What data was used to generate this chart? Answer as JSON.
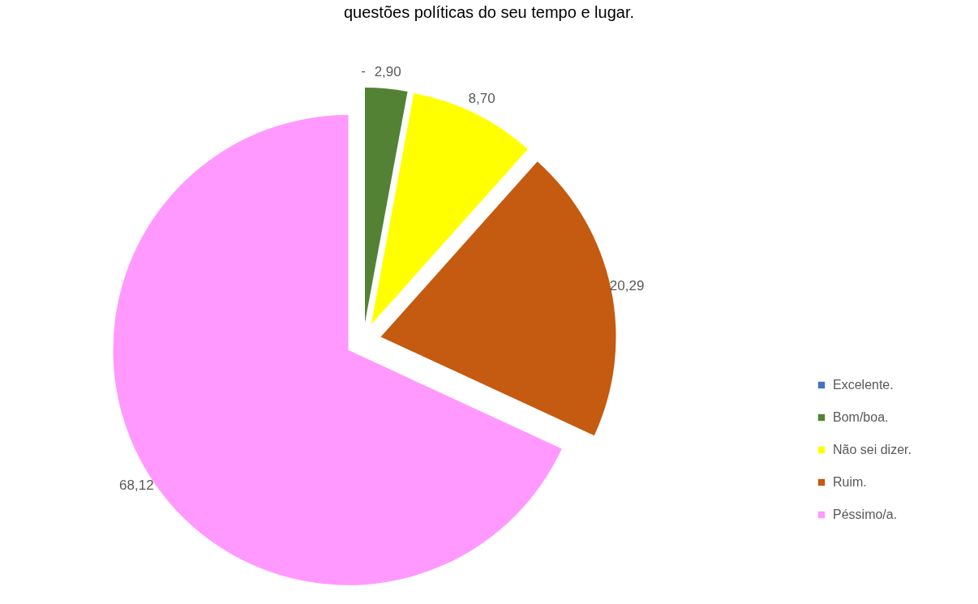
{
  "chart_data": {
    "type": "pie",
    "title": "questões políticas do seu tempo e lugar.",
    "categories": [
      "Excelente.",
      "Bom/boa.",
      "Não sei dizer.",
      "Ruim.",
      "Péssimo/a."
    ],
    "values": [
      0,
      2.9,
      8.7,
      20.29,
      68.12
    ],
    "colors": [
      "#4472c4",
      "#548235",
      "#ffff00",
      "#c55a11",
      "#ff99ff"
    ],
    "value_labels": [
      "-",
      "2,90",
      "8,70",
      "20,29",
      "68,12"
    ],
    "legend": "right"
  }
}
